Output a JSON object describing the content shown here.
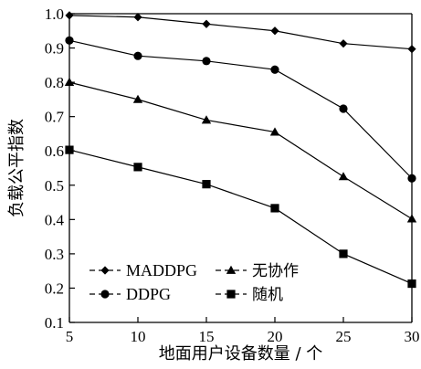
{
  "chart_data": {
    "type": "line",
    "x": [
      5,
      10,
      15,
      20,
      25,
      30
    ],
    "xlabel": "地面用户设备数量 / 个",
    "ylabel": "负载公平指数",
    "xlim": [
      5,
      30
    ],
    "ylim": [
      0.1,
      1.0
    ],
    "xticks": [
      5,
      10,
      15,
      20,
      25,
      30
    ],
    "yticks": [
      "0.1",
      "0.2",
      "0.3",
      "0.4",
      "0.5",
      "0.6",
      "0.7",
      "0.8",
      "0.9",
      "1.0"
    ],
    "grid": false,
    "legend_position": "bottom-left",
    "series": [
      {
        "name": "MADDPG",
        "marker": "diamond",
        "values": [
          0.995,
          0.99,
          0.97,
          0.95,
          0.913,
          0.897
        ]
      },
      {
        "name": "无协作",
        "marker": "triangle",
        "values": [
          0.8,
          0.75,
          0.69,
          0.655,
          0.525,
          0.402
        ]
      },
      {
        "name": "DDPG",
        "marker": "circle",
        "values": [
          0.922,
          0.877,
          0.862,
          0.837,
          0.723,
          0.52
        ]
      },
      {
        "name": "随机",
        "marker": "square",
        "values": [
          0.603,
          0.553,
          0.503,
          0.433,
          0.3,
          0.213
        ]
      }
    ],
    "colors": {
      "line": "#000000",
      "marker": "#000000"
    }
  }
}
